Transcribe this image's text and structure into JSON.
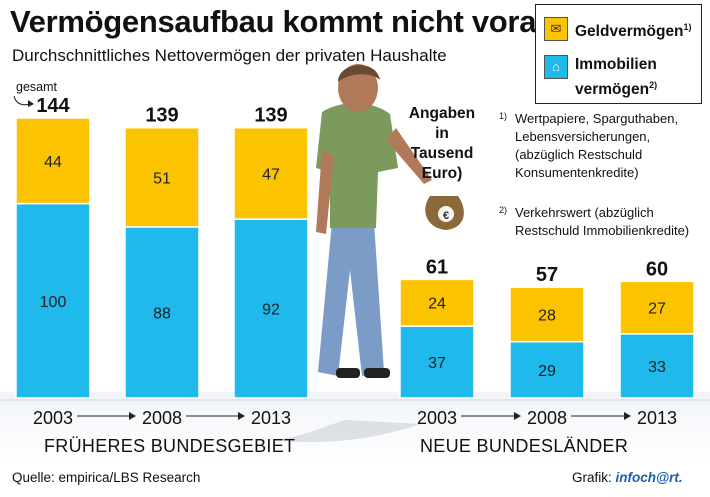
{
  "chart_data": {
    "type": "bar",
    "stacked": true,
    "title": "Vermögensaufbau kommt nicht voran",
    "subtitle": "Durchschnittliches Nettovermögen der privaten Haushalte",
    "unit_note": "Angaben in Tausend Euro)",
    "total_label": "gesamt",
    "groups": [
      {
        "name": "FRÜHERES BUNDESGEBIET",
        "categories": [
          "2003",
          "2008",
          "2013"
        ],
        "totals": [
          144,
          139,
          139
        ],
        "series": [
          {
            "name": "Immobilienvermögen",
            "values": [
              100,
              88,
              92
            ]
          },
          {
            "name": "Geldvermögen",
            "values": [
              44,
              51,
              47
            ]
          }
        ]
      },
      {
        "name": "NEUE BUNDESLÄNDER",
        "categories": [
          "2003",
          "2008",
          "2013"
        ],
        "totals": [
          61,
          57,
          60
        ],
        "series": [
          {
            "name": "Immobilienvermögen",
            "values": [
              37,
              29,
              33
            ]
          },
          {
            "name": "Geldvermögen",
            "values": [
              24,
              28,
              27
            ]
          }
        ]
      }
    ],
    "ylim": [
      0,
      144
    ],
    "colors": {
      "Geldvermögen": "#fcc300",
      "Immobilienvermögen": "#1fb9ec",
      "bar_edge": "#ffffff"
    }
  },
  "legend": {
    "geld_label": "Geldvermögen",
    "geld_ref": "1)",
    "immo_label_1": "Immobilien",
    "immo_label_2": "vermögen",
    "immo_ref": "2)"
  },
  "footnotes": [
    {
      "ref": "1)",
      "text": "Wertpapiere, Sparguthaben, Lebensversicherungen, (abzüglich Restschuld Konsumentenkredite)"
    },
    {
      "ref": "2)",
      "text": "Verkehrswert (abzüglich Restschuld Immobilienkredite)"
    }
  ],
  "source": "Quelle: empirica/LBS Research",
  "credit": {
    "prefix": "Grafik: ",
    "logo": "infoch@rt."
  }
}
